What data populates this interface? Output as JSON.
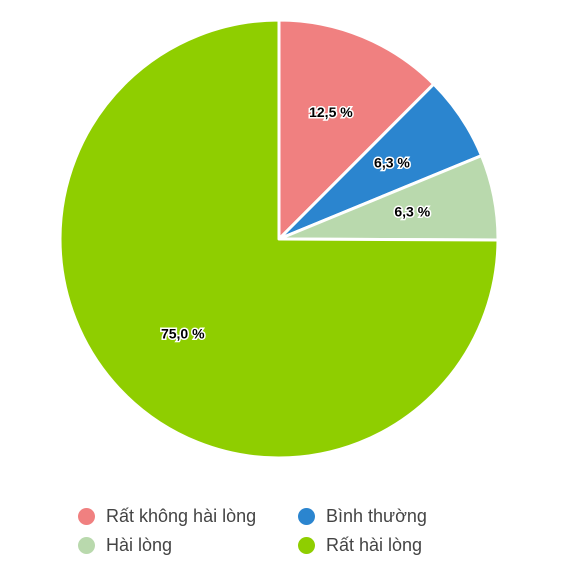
{
  "chart_data": {
    "type": "pie",
    "title": "",
    "slices": [
      {
        "name": "Rất không hài lòng",
        "value": 12.5,
        "label": "12,5 %",
        "color": "#f08080"
      },
      {
        "name": "Bình thường",
        "value": 6.3,
        "label": "6,3 %",
        "color": "#2b85cf"
      },
      {
        "name": "Hài lòng",
        "value": 6.3,
        "label": "6,3 %",
        "color": "#b9d9ad"
      },
      {
        "name": "Rất hài lòng",
        "value": 75.0,
        "label": "75,0 %",
        "color": "#8fce00"
      }
    ],
    "start_angle_deg": 0,
    "direction": "clockwise",
    "legend_position": "bottom"
  },
  "legend": {
    "items": [
      {
        "label": "Rất không hài lòng",
        "color": "#f08080"
      },
      {
        "label": "Bình thường",
        "color": "#2b85cf"
      },
      {
        "label": "Hài lòng",
        "color": "#b9d9ad"
      },
      {
        "label": "Rất hài lòng",
        "color": "#8fce00"
      }
    ]
  }
}
